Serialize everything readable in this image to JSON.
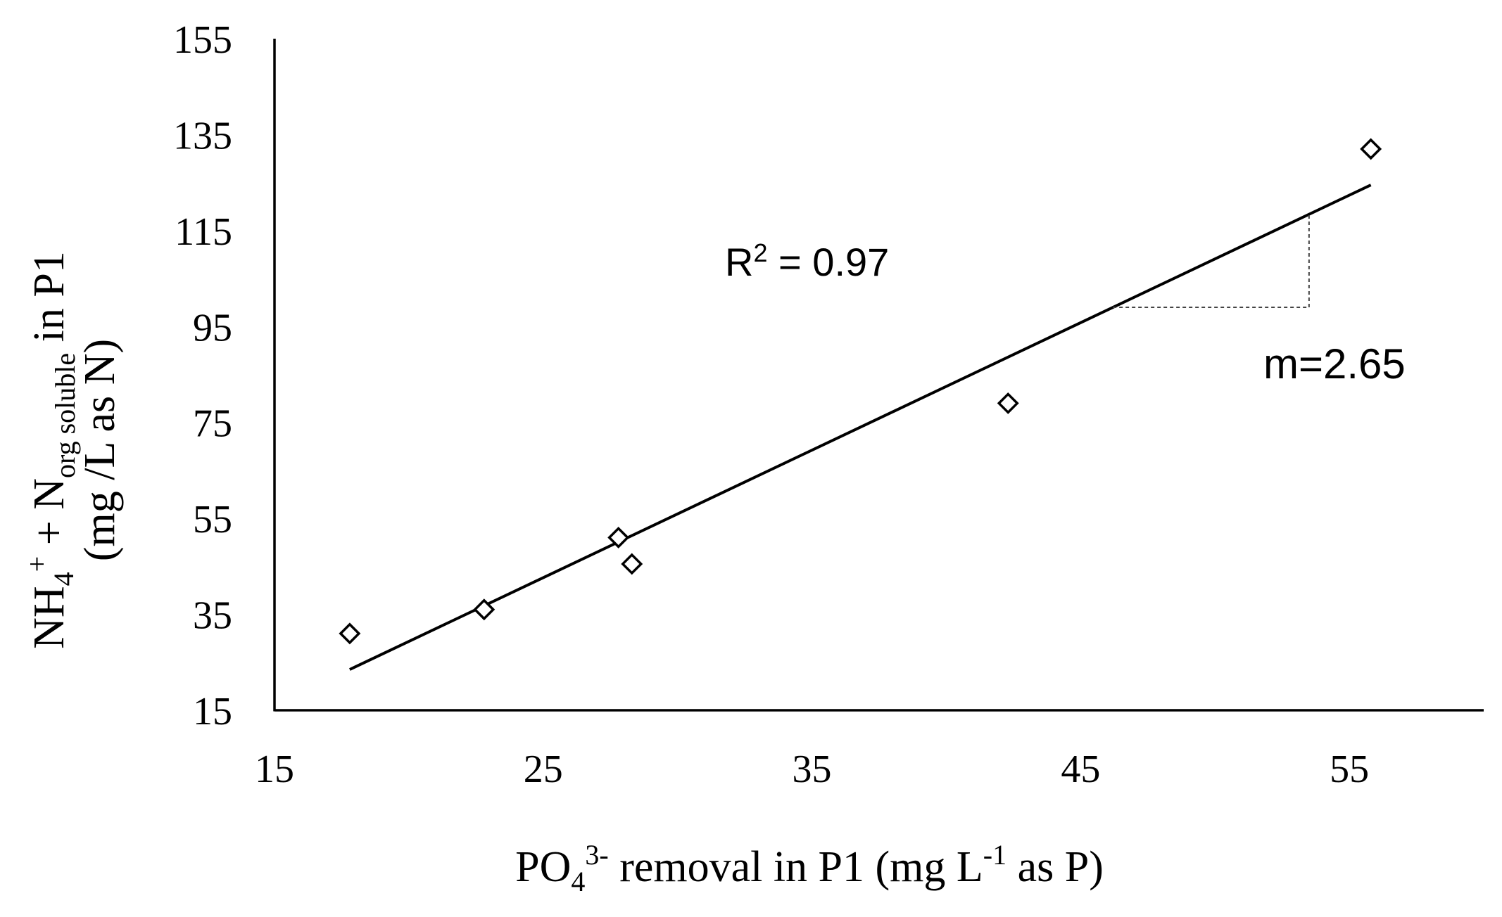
{
  "chart_data": {
    "type": "scatter",
    "title": "",
    "xlabel": {
      "base": "PO",
      "sub": "4",
      "sup": "3-",
      "middle": " removal in P1 (mg L",
      "sup2": "-1",
      "end": " as P)"
    },
    "ylabel": {
      "line1": {
        "base": "NH",
        "sub": "4",
        "sup": "+",
        "middle": " + N",
        "sub2": "org soluble",
        "end": "  in P1"
      },
      "line2": "(mg /L as N)"
    },
    "xlim": [
      15,
      60
    ],
    "ylim": [
      15,
      155
    ],
    "x_ticks": [
      "15",
      "25",
      "35",
      "45",
      "55"
    ],
    "y_ticks": [
      "15",
      "35",
      "55",
      "75",
      "95",
      "115",
      "135",
      "155"
    ],
    "grid": false,
    "legend": "none",
    "marker": "diamond-open",
    "points": [
      {
        "x": 17.8,
        "y": 31
      },
      {
        "x": 22.8,
        "y": 36
      },
      {
        "x": 27.8,
        "y": 51
      },
      {
        "x": 28.3,
        "y": 45.5
      },
      {
        "x": 42.3,
        "y": 79
      },
      {
        "x": 55.8,
        "y": 132
      }
    ],
    "trendline": {
      "x": [
        17.8,
        55.8
      ],
      "y": [
        23.5,
        124.5
      ]
    },
    "slope_triangle": {
      "x": [
        46.2,
        53.5
      ],
      "y": [
        99,
        118.2
      ]
    },
    "annotations": {
      "r2": {
        "prefix": "R",
        "sup": "2",
        "text": " = 0.97"
      },
      "slope": "m=2.65"
    }
  }
}
